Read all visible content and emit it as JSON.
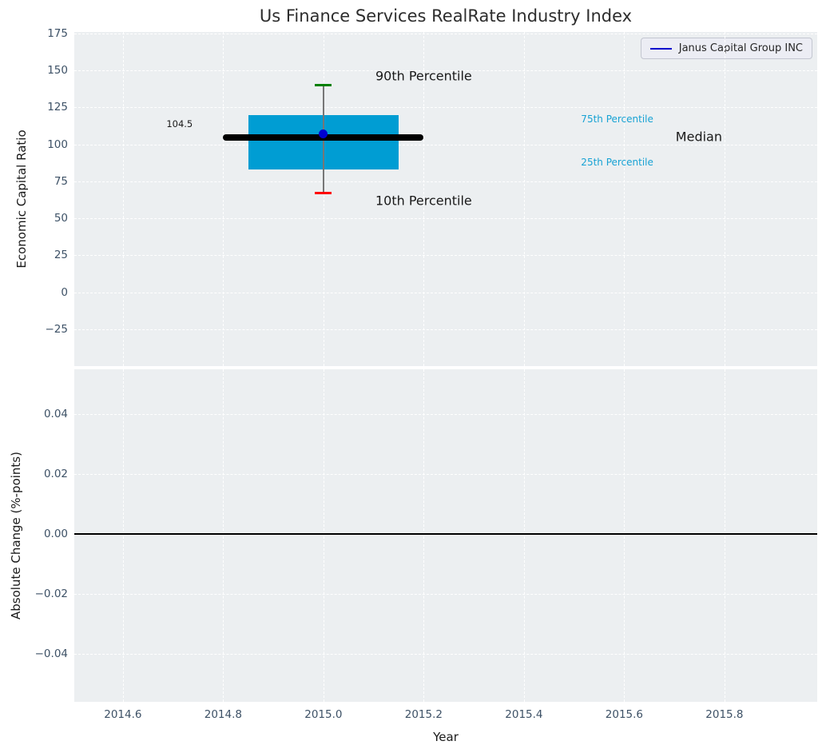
{
  "title": "Us Finance Services RealRate Industry Index",
  "legend": {
    "label": "Janus Capital Group INC"
  },
  "colors": {
    "figure_bg": "#ffffff",
    "plot_bg": "#eceff1",
    "grid": "#ffffff",
    "tick_label": "#3d5166",
    "title_text": "#2d2d2d",
    "axis_label": "#1a1a1a",
    "text": "#1a1a1a",
    "box_fill": "#009dd3",
    "percentile_text": "#17a2d4",
    "whisker": "#777777",
    "cap_high": "#008000",
    "cap_low": "#ff0000",
    "median_line": "#000000",
    "company_dot": "#0000d0",
    "legend_line": "#0000cc",
    "zero_line": "#000000"
  },
  "chart_data": [
    {
      "type": "boxplot",
      "title": "Us Finance Services RealRate Industry Index",
      "ylabel": "Economic Capital Ratio",
      "xlim": [
        2014.503,
        2015.985
      ],
      "ylim": [
        -50,
        176
      ],
      "grid": true,
      "legend_entries": [
        "Janus Capital Group INC"
      ],
      "yticks": {
        "values": [
          175,
          150,
          125,
          100,
          75,
          50,
          25,
          0,
          -25
        ],
        "labels": [
          "175",
          "150",
          "125",
          "100",
          "75",
          "50",
          "25",
          "0",
          "−25"
        ]
      },
      "xticks": {
        "values": [
          2014.6,
          2014.8,
          2015.0,
          2015.2,
          2015.4,
          2015.6,
          2015.8
        ],
        "labels": []
      },
      "series": {
        "name": "Industry distribution box",
        "x": 2015.0,
        "p10": 67,
        "q1": 83,
        "median": 104.5,
        "q3": 120,
        "p90": 140,
        "box_x_span": [
          2014.85,
          2015.15
        ],
        "median_x_span": [
          2014.8,
          2015.2
        ],
        "company_point": {
          "x": 2015.0,
          "y": 107
        }
      },
      "annotations": [
        {
          "text": "90th Percentile",
          "x": 2015.2,
          "y": 146,
          "size": 16,
          "color": "text"
        },
        {
          "text": "10th Percentile",
          "x": 2015.2,
          "y": 62,
          "size": 16,
          "color": "text"
        },
        {
          "text": "104.5",
          "x": 2014.713,
          "y": 114,
          "size": 11.5,
          "color": "text"
        },
        {
          "text": "75th Percentile",
          "x": 2015.586,
          "y": 117,
          "size": 12,
          "color": "percentile_text"
        },
        {
          "text": "25th Percentile",
          "x": 2015.586,
          "y": 88,
          "size": 12,
          "color": "percentile_text"
        },
        {
          "text": "Median",
          "x": 2015.749,
          "y": 105,
          "size": 16,
          "color": "text"
        }
      ]
    },
    {
      "type": "line",
      "ylabel": "Absolute Change (%-points)",
      "xlabel": "Year",
      "xlim": [
        2014.503,
        2015.985
      ],
      "ylim": [
        -0.056,
        0.055
      ],
      "grid": true,
      "zero_line": 0,
      "yticks": {
        "values": [
          0.04,
          0.02,
          0,
          -0.02,
          -0.04
        ],
        "labels": [
          "0.04",
          "0.02",
          "0.00",
          "−0.02",
          "−0.04"
        ]
      },
      "xticks": {
        "values": [
          2014.6,
          2014.8,
          2015.0,
          2015.2,
          2015.4,
          2015.6,
          2015.8
        ],
        "labels": [
          "2014.6",
          "2014.8",
          "2015.0",
          "2015.2",
          "2015.4",
          "2015.6",
          "2015.8"
        ]
      },
      "series": []
    }
  ]
}
